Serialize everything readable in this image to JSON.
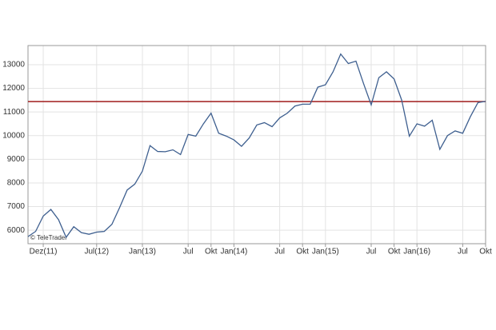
{
  "chart_data": {
    "type": "line",
    "watermark": "© TeleTrader",
    "categories": [
      null,
      null,
      "Dez(11)",
      null,
      null,
      null,
      null,
      null,
      null,
      "Jul(12)",
      null,
      null,
      null,
      null,
      null,
      "Jan(13)",
      null,
      null,
      null,
      null,
      null,
      "Jul",
      null,
      null,
      "Okt",
      null,
      null,
      "Jan(14)",
      null,
      null,
      null,
      null,
      null,
      "Jul",
      null,
      null,
      "Okt",
      null,
      null,
      "Jan(15)",
      null,
      null,
      null,
      null,
      null,
      "Jul",
      null,
      null,
      "Okt",
      null,
      null,
      "Jan(16)",
      null,
      null,
      null,
      null,
      null,
      "Jul",
      null,
      null,
      "Okt"
    ],
    "series": [
      {
        "color": "#3e5f8f",
        "values": [
          5730,
          5950,
          6600,
          6880,
          6450,
          5700,
          6150,
          5900,
          5830,
          5920,
          5950,
          6250,
          6950,
          7700,
          7950,
          8500,
          9580,
          9330,
          9320,
          9400,
          9200,
          10050,
          9980,
          10500,
          10950,
          10100,
          9980,
          9820,
          9550,
          9900,
          10450,
          10550,
          10380,
          10750,
          10950,
          11250,
          11330,
          11330,
          12050,
          12150,
          12700,
          13450,
          13050,
          13150,
          12200,
          11300,
          12450,
          12700,
          12400,
          11500,
          9980,
          10500,
          10400,
          10650,
          9420,
          10000,
          10200,
          10100,
          10800,
          11400,
          11450
        ]
      }
    ],
    "reference_line": {
      "value": 11440,
      "color": "#a01c1c"
    },
    "ylim": [
      5430,
      13810
    ],
    "yticks": [
      6000,
      7000,
      8000,
      9000,
      10000,
      11000,
      12000,
      13000
    ],
    "grid": true
  }
}
